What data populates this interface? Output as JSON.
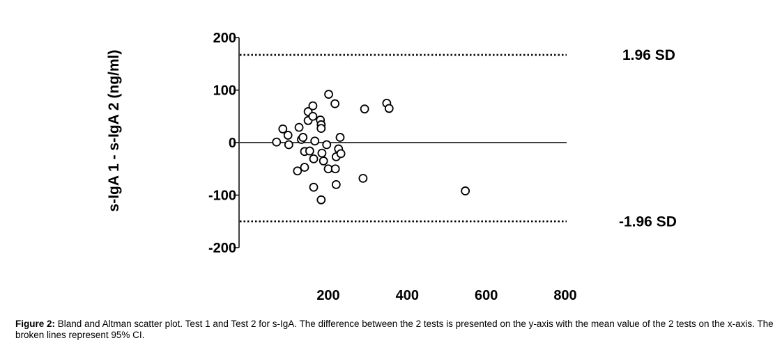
{
  "chart_data": {
    "type": "scatter",
    "ylabel": "s-IgA 1 - s-IgA 2 (ng/ml)",
    "xlim": [
      0,
      800
    ],
    "ylim": [
      -200,
      200
    ],
    "x_ticks": [
      200,
      400,
      600,
      800
    ],
    "y_ticks": [
      200,
      100,
      0,
      -100,
      -200
    ],
    "reference_lines": [
      {
        "label": "1.96 SD",
        "y": 167,
        "style": "dotted"
      },
      {
        "label": "0",
        "y": 0,
        "style": "solid"
      },
      {
        "label": "-1.96 SD",
        "y": -150,
        "style": "dotted"
      }
    ],
    "points": [
      {
        "x": 69,
        "y": 1
      },
      {
        "x": 85,
        "y": 26
      },
      {
        "x": 98,
        "y": 14
      },
      {
        "x": 100,
        "y": -4
      },
      {
        "x": 122,
        "y": -54
      },
      {
        "x": 126,
        "y": 29
      },
      {
        "x": 132,
        "y": 6
      },
      {
        "x": 136,
        "y": 10
      },
      {
        "x": 140,
        "y": -47
      },
      {
        "x": 140,
        "y": -17
      },
      {
        "x": 149,
        "y": 59
      },
      {
        "x": 149,
        "y": 42
      },
      {
        "x": 153,
        "y": -16
      },
      {
        "x": 161,
        "y": 70
      },
      {
        "x": 161,
        "y": 50
      },
      {
        "x": 163,
        "y": -31
      },
      {
        "x": 163,
        "y": -85
      },
      {
        "x": 166,
        "y": 3
      },
      {
        "x": 180,
        "y": 43
      },
      {
        "x": 182,
        "y": 34
      },
      {
        "x": 182,
        "y": 27
      },
      {
        "x": 182,
        "y": -109
      },
      {
        "x": 184,
        "y": -20
      },
      {
        "x": 188,
        "y": -35
      },
      {
        "x": 196,
        "y": -4
      },
      {
        "x": 200,
        "y": -50
      },
      {
        "x": 201,
        "y": 92
      },
      {
        "x": 217,
        "y": 74
      },
      {
        "x": 218,
        "y": -50
      },
      {
        "x": 220,
        "y": -80
      },
      {
        "x": 220,
        "y": -27
      },
      {
        "x": 226,
        "y": -12
      },
      {
        "x": 230,
        "y": 10
      },
      {
        "x": 232,
        "y": -21
      },
      {
        "x": 288,
        "y": -68
      },
      {
        "x": 292,
        "y": 64
      },
      {
        "x": 348,
        "y": 75
      },
      {
        "x": 354,
        "y": 65
      },
      {
        "x": 547,
        "y": -92
      }
    ]
  },
  "caption": {
    "label": "Figure 2:",
    "text": " Bland and Altman scatter plot. Test 1 and Test 2 for s-IgA. The difference between the 2 tests is presented on the y-axis with the mean value of the 2 tests on the x-axis. The broken lines represent 95% CI."
  }
}
